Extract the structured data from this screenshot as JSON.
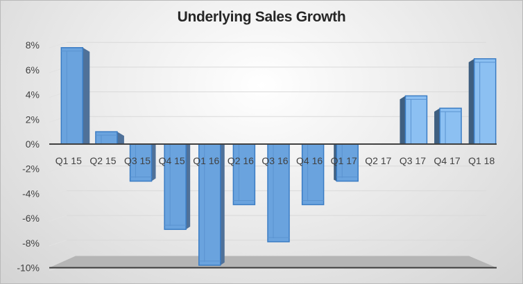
{
  "chart_data": {
    "type": "bar",
    "style": "3d-column",
    "title": "Underlying Sales Growth",
    "xlabel": "",
    "ylabel": "",
    "categories": [
      "Q1 15",
      "Q2 15",
      "Q3 15",
      "Q4 15",
      "Q1 16",
      "Q2 16",
      "Q3 16",
      "Q4 16",
      "Q1 17",
      "Q2 17",
      "Q3 17",
      "Q4 17",
      "Q1 18"
    ],
    "series": [
      {
        "name": "Underlying Sales Growth",
        "values": [
          7.8,
          1.0,
          -3.0,
          -6.9,
          -9.8,
          -4.9,
          -7.9,
          -4.9,
          -3.0,
          0.0,
          3.9,
          2.9,
          6.9
        ]
      }
    ],
    "ylim": [
      -10,
      8
    ],
    "yticks": [
      "8%",
      "6%",
      "4%",
      "2%",
      "0%",
      "-2%",
      "-4%",
      "-6%",
      "-8%",
      "-10%"
    ],
    "grid": true,
    "legend": "none",
    "colors": {
      "bar_front": "#6aa3de",
      "bar_side": "#3f5f80",
      "bar_edge": "#3a7cc4",
      "floor": "#b5b5b5"
    }
  }
}
